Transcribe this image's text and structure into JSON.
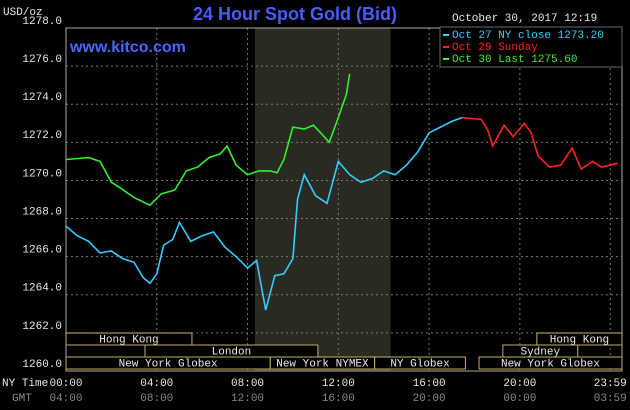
{
  "chart_data": {
    "type": "line",
    "title": "24 Hour Spot Gold (Bid)",
    "date_label": "October 30, 2017 12:19",
    "source": "www.kitco.com",
    "y_label": "USD/oz",
    "x_row_label": "NY Time",
    "x2_row_label": "GMT",
    "xlim": [
      0,
      24.5
    ],
    "ylim": [
      1260,
      1278
    ],
    "yticks": [
      {
        "value": 1260,
        "label": "1260.0"
      },
      {
        "value": 1262,
        "label": "1262.0"
      },
      {
        "value": 1264,
        "label": "1264.0"
      },
      {
        "value": 1266,
        "label": "1266.0"
      },
      {
        "value": 1268,
        "label": "1268.0"
      },
      {
        "value": 1270,
        "label": "1270.0"
      },
      {
        "value": 1272,
        "label": "1272.0"
      },
      {
        "value": 1274,
        "label": "1274.0"
      },
      {
        "value": 1276,
        "label": "1276.0"
      },
      {
        "value": 1278,
        "label": "1278.0"
      }
    ],
    "xticks": [
      {
        "value": 0,
        "label": "00:00"
      },
      {
        "value": 4,
        "label": "04:00"
      },
      {
        "value": 8,
        "label": "08:00"
      },
      {
        "value": 12,
        "label": "12:00"
      },
      {
        "value": 16,
        "label": "16:00"
      },
      {
        "value": 20,
        "label": "20:00"
      },
      {
        "value": 23.983,
        "label": "23:59"
      }
    ],
    "x2tick_labels": [
      "04:00",
      "08:00",
      "12:00",
      "16:00",
      "20:00",
      "00:00",
      "03:59"
    ],
    "grid": true,
    "shaded": [
      8.33,
      14.3
    ],
    "series": [
      {
        "name": "Oct 27 NY close 1273.20",
        "color": "#33ccff",
        "x": [
          0,
          0.5,
          1,
          1.5,
          2,
          2.5,
          3,
          3.4,
          3.7,
          4,
          4.3,
          4.7,
          5,
          5.5,
          6,
          6.5,
          7,
          7.5,
          8,
          8.4,
          8.8,
          9.2,
          9.6,
          10.0,
          10.2,
          10.5,
          11,
          11.5,
          12,
          12.5,
          13,
          13.5,
          14,
          14.5,
          15,
          15.5,
          16,
          16.5,
          17,
          17.45
        ],
        "values": [
          1267.6,
          1267.1,
          1266.8,
          1266.2,
          1266.3,
          1265.9,
          1265.7,
          1264.9,
          1264.6,
          1265.1,
          1266.6,
          1266.9,
          1267.8,
          1266.8,
          1267.1,
          1267.3,
          1266.5,
          1266.0,
          1265.4,
          1265.8,
          1263.2,
          1265.0,
          1265.1,
          1265.9,
          1269.0,
          1270.3,
          1269.2,
          1268.8,
          1271.0,
          1270.3,
          1269.9,
          1270.1,
          1270.5,
          1270.3,
          1270.8,
          1271.5,
          1272.5,
          1272.8,
          1273.1,
          1273.3
        ]
      },
      {
        "name": "Oct 29 Sunday",
        "color": "#ff2020",
        "x": [
          17.45,
          18.3,
          18.6,
          18.8,
          19.3,
          19.7,
          20.2,
          20.5,
          20.8,
          21.3,
          21.8,
          22.3,
          22.7,
          23.2,
          23.6,
          24.3
        ],
        "values": [
          1273.3,
          1273.2,
          1272.6,
          1271.8,
          1272.9,
          1272.3,
          1273.0,
          1272.5,
          1271.3,
          1270.7,
          1270.8,
          1271.7,
          1270.6,
          1271.0,
          1270.7,
          1270.9
        ]
      },
      {
        "name": "Oct 30 Last 1275.60",
        "color": "#33ee33",
        "x": [
          0,
          1,
          1.5,
          2,
          2.4,
          3,
          3.7,
          4.2,
          4.8,
          5.3,
          5.8,
          6.3,
          6.8,
          7.1,
          7.5,
          8,
          8.5,
          9,
          9.3,
          9.6,
          10,
          10.5,
          10.9,
          11.3,
          11.6,
          12,
          12.2,
          12.35,
          12.5
        ],
        "values": [
          1271.1,
          1271.2,
          1271.0,
          1269.9,
          1269.6,
          1269.1,
          1268.7,
          1269.3,
          1269.5,
          1270.5,
          1270.7,
          1271.2,
          1271.4,
          1271.8,
          1270.8,
          1270.3,
          1270.5,
          1270.5,
          1270.4,
          1271.1,
          1272.8,
          1272.7,
          1272.9,
          1272.4,
          1272.0,
          1273.3,
          1274.0,
          1274.5,
          1275.6
        ]
      }
    ],
    "session_rows": [
      [
        {
          "name": "Hong Kong",
          "start": 0,
          "end": 5.55
        },
        {
          "name": "Hong Kong",
          "start": 20.75,
          "end": 24.5
        }
      ],
      [
        {
          "name": "London",
          "start": 3.48,
          "end": 11.1
        },
        {
          "name": "Sydney",
          "start": 19.25,
          "end": 22.55
        }
      ],
      [
        {
          "name": "New York Globex",
          "start": 0,
          "end": 9.0
        },
        {
          "name": "New York NYMEX",
          "start": 9.0,
          "end": 13.6
        },
        {
          "name": "NY Globex",
          "start": 13.6,
          "end": 17.6
        },
        {
          "name": "New York Globex",
          "start": 18.2,
          "end": 24.5
        }
      ]
    ]
  }
}
